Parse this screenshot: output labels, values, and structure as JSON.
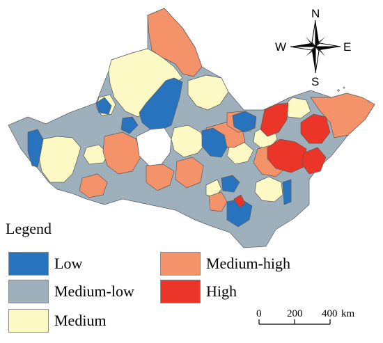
{
  "legend": {
    "title": "Legend",
    "items": [
      {
        "key": "low",
        "label": "Low",
        "color": "#2873bd"
      },
      {
        "key": "medium_low",
        "label": "Medium-low",
        "color": "#9fb0bd"
      },
      {
        "key": "medium",
        "label": "Medium",
        "color": "#fdf9c4"
      },
      {
        "key": "medium_high",
        "label": "Medium-high",
        "color": "#f4936a"
      },
      {
        "key": "high",
        "label": "High",
        "color": "#ec3529"
      }
    ]
  },
  "compass": {
    "north": "N",
    "south": "S",
    "east": "E",
    "west": "W"
  },
  "scale_bar": {
    "ticks": [
      "0",
      "200",
      "400"
    ],
    "unit": "km"
  },
  "colors": {
    "border": "#5a5a5a",
    "background": "#ffffff"
  }
}
